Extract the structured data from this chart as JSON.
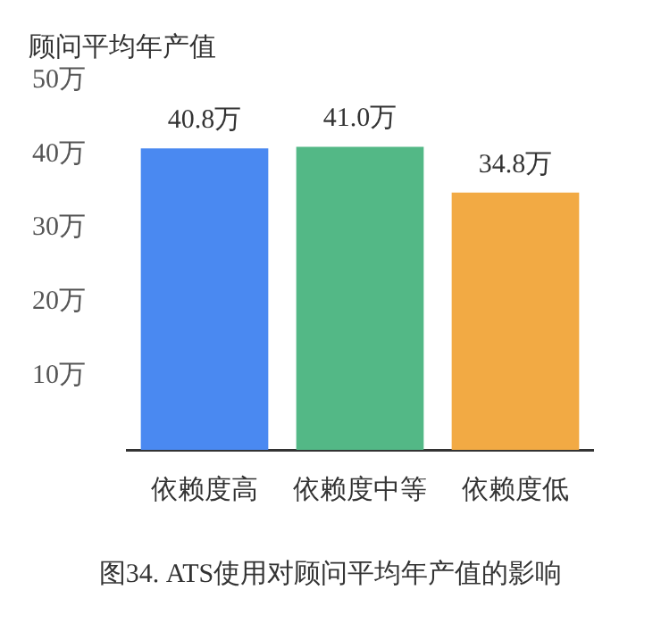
{
  "chart_data": {
    "type": "bar",
    "ylabel": "顾问平均年产值",
    "categories": [
      "依赖度高",
      "依赖度中等",
      "依赖度低"
    ],
    "values": [
      40.8,
      41.0,
      34.8
    ],
    "colors": [
      "#4a89f1",
      "#53b886",
      "#f2aa44"
    ],
    "value_labels": [
      "40.8万",
      "41.0万",
      "34.8万"
    ],
    "ylim": [
      0,
      50
    ],
    "yticks": [
      {
        "value": 10,
        "label": "10万"
      },
      {
        "value": 20,
        "label": "20万"
      },
      {
        "value": 30,
        "label": "30万"
      },
      {
        "value": 40,
        "label": "40万"
      },
      {
        "value": 50,
        "label": "50万"
      }
    ],
    "grid": false,
    "legend": false,
    "annotations": [
      "图34. ATS使用对顾问平均年产值的影响"
    ]
  }
}
